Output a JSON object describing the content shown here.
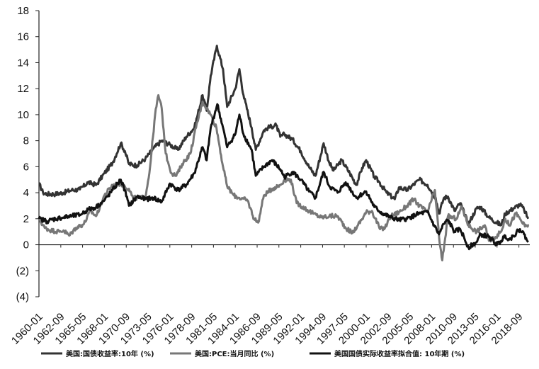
{
  "chart_data": {
    "type": "line",
    "title": "",
    "xlabel": "",
    "ylabel": "",
    "ylim": [
      -4,
      18
    ],
    "yticks": [
      18,
      16,
      14,
      12,
      10,
      8,
      6,
      4,
      2,
      0,
      -2,
      -4
    ],
    "ytick_labels": [
      "18",
      "16",
      "14",
      "12",
      "10",
      "8",
      "6",
      "4",
      "2",
      "0",
      "(2)",
      "(4)"
    ],
    "xlim": [
      1960.0,
      2020.0
    ],
    "xtick_labels": [
      "1960-01",
      "1962-09",
      "1965-05",
      "1968-01",
      "1970-09",
      "1973-05",
      "1976-01",
      "1978-09",
      "1981-05",
      "1984-01",
      "1986-09",
      "1989-05",
      "1992-01",
      "1994-09",
      "1997-05",
      "2000-01",
      "2002-09",
      "2005-05",
      "2008-01",
      "2010-09",
      "2013-05",
      "2016-01",
      "2018-09"
    ],
    "xtick_values": [
      1960.0,
      1962.67,
      1965.33,
      1968.0,
      1970.67,
      1973.33,
      1976.0,
      1978.67,
      1981.33,
      1984.0,
      1986.67,
      1989.33,
      1992.0,
      1994.67,
      1997.33,
      2000.0,
      2002.67,
      2005.33,
      2008.0,
      2010.67,
      2013.33,
      2016.0,
      2018.67
    ],
    "grid": false,
    "legend_position": "bottom",
    "series": [
      {
        "name": "美国:国债收益率:10年 (%)",
        "color": "#333333",
        "points": [
          [
            1960.0,
            4.7
          ],
          [
            1960.5,
            4.0
          ],
          [
            1961.0,
            3.9
          ],
          [
            1962.0,
            3.9
          ],
          [
            1963.0,
            4.0
          ],
          [
            1964.0,
            4.2
          ],
          [
            1965.0,
            4.25
          ],
          [
            1966.0,
            4.8
          ],
          [
            1967.0,
            4.6
          ],
          [
            1968.0,
            5.5
          ],
          [
            1969.0,
            6.3
          ],
          [
            1970.0,
            7.8
          ],
          [
            1970.5,
            7.2
          ],
          [
            1971.0,
            6.2
          ],
          [
            1972.0,
            6.1
          ],
          [
            1973.0,
            6.6
          ],
          [
            1974.0,
            7.4
          ],
          [
            1975.0,
            8.0
          ],
          [
            1976.0,
            7.7
          ],
          [
            1977.0,
            7.3
          ],
          [
            1978.0,
            8.3
          ],
          [
            1979.0,
            9.0
          ],
          [
            1980.0,
            11.5
          ],
          [
            1980.5,
            10.3
          ],
          [
            1981.0,
            13.0
          ],
          [
            1981.75,
            15.3
          ],
          [
            1982.5,
            13.5
          ],
          [
            1983.0,
            10.6
          ],
          [
            1984.0,
            12.0
          ],
          [
            1984.5,
            13.5
          ],
          [
            1985.0,
            11.5
          ],
          [
            1986.0,
            9.0
          ],
          [
            1986.5,
            7.3
          ],
          [
            1987.5,
            8.8
          ],
          [
            1988.0,
            9.0
          ],
          [
            1989.0,
            9.2
          ],
          [
            1989.5,
            8.3
          ],
          [
            1990.0,
            8.5
          ],
          [
            1991.0,
            8.1
          ],
          [
            1992.0,
            7.2
          ],
          [
            1993.0,
            6.0
          ],
          [
            1993.8,
            5.3
          ],
          [
            1994.8,
            7.8
          ],
          [
            1995.5,
            6.3
          ],
          [
            1996.0,
            5.7
          ],
          [
            1997.0,
            6.5
          ],
          [
            1998.0,
            5.5
          ],
          [
            1998.8,
            4.6
          ],
          [
            1999.5,
            5.9
          ],
          [
            2000.0,
            6.5
          ],
          [
            2001.0,
            5.2
          ],
          [
            2001.5,
            4.9
          ],
          [
            2002.5,
            4.0
          ],
          [
            2003.5,
            3.5
          ],
          [
            2004.0,
            4.4
          ],
          [
            2005.0,
            4.2
          ],
          [
            2006.5,
            5.0
          ],
          [
            2007.5,
            4.6
          ],
          [
            2008.5,
            3.6
          ],
          [
            2008.9,
            2.4
          ],
          [
            2009.5,
            3.6
          ],
          [
            2010.0,
            3.7
          ],
          [
            2010.8,
            2.6
          ],
          [
            2011.5,
            3.2
          ],
          [
            2012.5,
            1.6
          ],
          [
            2013.5,
            2.8
          ],
          [
            2014.0,
            2.9
          ],
          [
            2015.0,
            2.1
          ],
          [
            2016.5,
            1.5
          ],
          [
            2017.0,
            2.4
          ],
          [
            2018.0,
            2.8
          ],
          [
            2018.8,
            3.1
          ],
          [
            2019.3,
            2.7
          ],
          [
            2019.8,
            2.0
          ]
        ]
      },
      {
        "name": "美国:PCE:当月同比 (%)",
        "color": "#777777",
        "points": [
          [
            1960.0,
            2.0
          ],
          [
            1960.7,
            1.3
          ],
          [
            1961.5,
            1.1
          ],
          [
            1962.5,
            1.0
          ],
          [
            1963.0,
            1.1
          ],
          [
            1963.7,
            0.7
          ],
          [
            1964.5,
            1.3
          ],
          [
            1965.5,
            1.6
          ],
          [
            1966.3,
            2.6
          ],
          [
            1967.0,
            2.2
          ],
          [
            1968.0,
            3.8
          ],
          [
            1969.0,
            4.6
          ],
          [
            1970.0,
            4.7
          ],
          [
            1971.0,
            4.3
          ],
          [
            1971.5,
            3.6
          ],
          [
            1972.5,
            3.6
          ],
          [
            1973.0,
            3.7
          ],
          [
            1973.5,
            5.5
          ],
          [
            1974.2,
            10.0
          ],
          [
            1974.6,
            11.5
          ],
          [
            1975.0,
            10.5
          ],
          [
            1975.5,
            7.0
          ],
          [
            1976.2,
            5.5
          ],
          [
            1976.8,
            5.3
          ],
          [
            1977.5,
            6.2
          ],
          [
            1978.5,
            7.0
          ],
          [
            1979.2,
            9.0
          ],
          [
            1980.0,
            11.0
          ],
          [
            1980.5,
            10.5
          ],
          [
            1981.0,
            10.0
          ],
          [
            1981.7,
            9.0
          ],
          [
            1982.5,
            6.0
          ],
          [
            1983.0,
            4.5
          ],
          [
            1983.8,
            3.8
          ],
          [
            1984.5,
            3.6
          ],
          [
            1985.5,
            3.4
          ],
          [
            1986.3,
            2.0
          ],
          [
            1986.8,
            1.7
          ],
          [
            1987.5,
            3.8
          ],
          [
            1988.5,
            4.3
          ],
          [
            1989.5,
            4.6
          ],
          [
            1990.0,
            5.0
          ],
          [
            1990.8,
            5.0
          ],
          [
            1991.5,
            3.2
          ],
          [
            1992.5,
            2.8
          ],
          [
            1993.5,
            2.4
          ],
          [
            1994.5,
            2.1
          ],
          [
            1995.5,
            2.2
          ],
          [
            1996.5,
            2.2
          ],
          [
            1997.5,
            1.3
          ],
          [
            1998.3,
            0.9
          ],
          [
            1999.0,
            1.5
          ],
          [
            2000.0,
            2.5
          ],
          [
            2000.7,
            2.6
          ],
          [
            2001.7,
            1.2
          ],
          [
            2002.3,
            1.3
          ],
          [
            2003.0,
            2.2
          ],
          [
            2004.0,
            2.5
          ],
          [
            2005.0,
            3.0
          ],
          [
            2005.8,
            3.5
          ],
          [
            2006.5,
            3.0
          ],
          [
            2007.5,
            2.5
          ],
          [
            2008.4,
            4.2
          ],
          [
            2009.0,
            0.0
          ],
          [
            2009.3,
            -1.2
          ],
          [
            2010.0,
            2.2
          ],
          [
            2011.0,
            2.0
          ],
          [
            2011.7,
            2.9
          ],
          [
            2012.5,
            1.5
          ],
          [
            2013.5,
            1.0
          ],
          [
            2014.5,
            1.5
          ],
          [
            2015.0,
            0.3
          ],
          [
            2015.8,
            0.6
          ],
          [
            2016.5,
            1.0
          ],
          [
            2017.0,
            2.0
          ],
          [
            2017.5,
            1.5
          ],
          [
            2018.3,
            2.4
          ],
          [
            2018.8,
            2.0
          ],
          [
            2019.4,
            1.4
          ],
          [
            2019.9,
            1.5
          ]
        ]
      },
      {
        "name": "美国国债实际收益率拟合值: 10年期 (%)",
        "color": "#111111",
        "points": [
          [
            1960.0,
            2.0
          ],
          [
            1961.0,
            1.8
          ],
          [
            1962.0,
            2.0
          ],
          [
            1963.0,
            2.1
          ],
          [
            1964.0,
            2.2
          ],
          [
            1965.0,
            2.3
          ],
          [
            1966.0,
            2.7
          ],
          [
            1967.0,
            2.9
          ],
          [
            1968.0,
            3.4
          ],
          [
            1969.0,
            4.2
          ],
          [
            1970.0,
            5.0
          ],
          [
            1970.5,
            4.2
          ],
          [
            1971.0,
            3.0
          ],
          [
            1972.0,
            3.7
          ],
          [
            1973.0,
            3.5
          ],
          [
            1974.0,
            3.6
          ],
          [
            1975.0,
            3.3
          ],
          [
            1976.0,
            4.7
          ],
          [
            1977.0,
            4.2
          ],
          [
            1978.0,
            4.6
          ],
          [
            1979.0,
            5.5
          ],
          [
            1980.0,
            7.5
          ],
          [
            1980.5,
            6.5
          ],
          [
            1981.0,
            9.0
          ],
          [
            1981.8,
            10.8
          ],
          [
            1982.5,
            9.0
          ],
          [
            1983.0,
            7.5
          ],
          [
            1984.0,
            8.5
          ],
          [
            1984.5,
            10.0
          ],
          [
            1985.0,
            8.5
          ],
          [
            1986.0,
            7.3
          ],
          [
            1986.5,
            5.3
          ],
          [
            1987.5,
            6.0
          ],
          [
            1988.5,
            6.5
          ],
          [
            1989.5,
            5.8
          ],
          [
            1990.0,
            5.2
          ],
          [
            1991.0,
            5.6
          ],
          [
            1992.0,
            5.0
          ],
          [
            1993.0,
            4.1
          ],
          [
            1993.8,
            3.6
          ],
          [
            1994.8,
            5.6
          ],
          [
            1995.5,
            4.5
          ],
          [
            1996.5,
            4.0
          ],
          [
            1997.5,
            4.8
          ],
          [
            1998.8,
            3.6
          ],
          [
            1999.5,
            3.9
          ],
          [
            2000.0,
            4.1
          ],
          [
            2001.0,
            2.9
          ],
          [
            2002.0,
            2.4
          ],
          [
            2003.0,
            2.1
          ],
          [
            2004.0,
            1.9
          ],
          [
            2005.0,
            2.0
          ],
          [
            2006.5,
            2.4
          ],
          [
            2007.5,
            2.5
          ],
          [
            2008.3,
            1.5
          ],
          [
            2008.9,
            0.8
          ],
          [
            2009.5,
            1.6
          ],
          [
            2010.0,
            1.9
          ],
          [
            2010.8,
            1.0
          ],
          [
            2011.5,
            1.2
          ],
          [
            2012.5,
            -0.2
          ],
          [
            2013.5,
            0.2
          ],
          [
            2014.0,
            0.8
          ],
          [
            2015.0,
            0.6
          ],
          [
            2016.0,
            0.0
          ],
          [
            2016.5,
            0.3
          ],
          [
            2017.0,
            0.7
          ],
          [
            2017.5,
            0.4
          ],
          [
            2018.0,
            0.7
          ],
          [
            2018.8,
            1.2
          ],
          [
            2019.3,
            0.8
          ],
          [
            2019.8,
            0.2
          ]
        ]
      }
    ]
  }
}
